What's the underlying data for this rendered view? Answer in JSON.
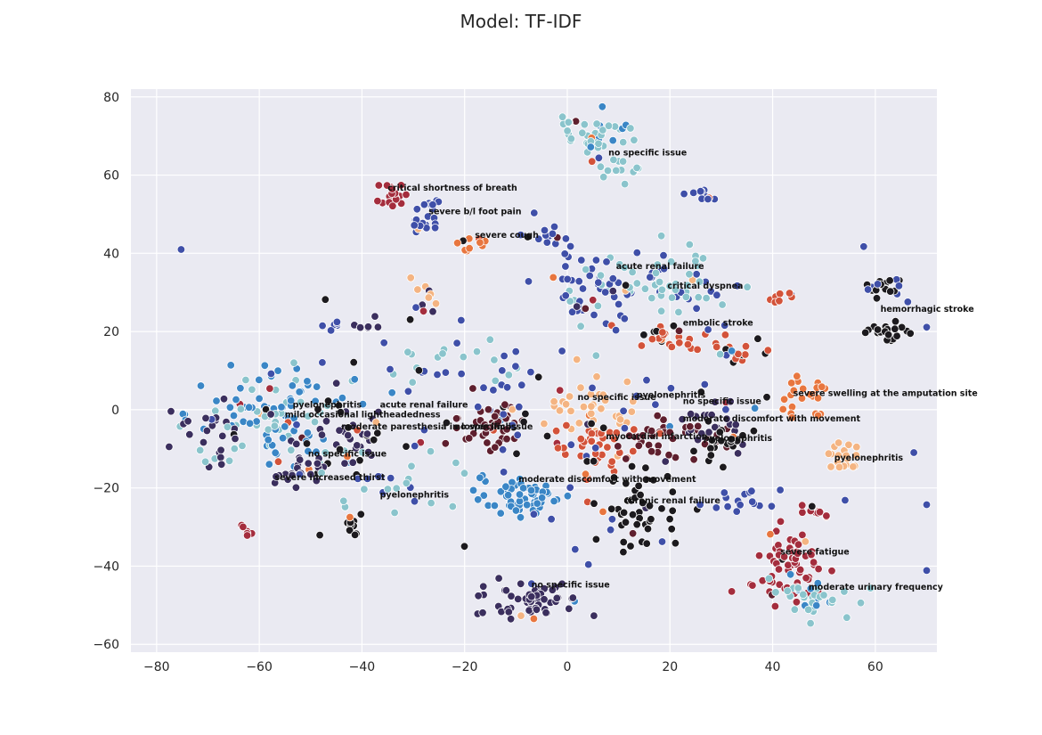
{
  "chart_data": {
    "type": "scatter",
    "title": "Model: TF-IDF",
    "xlabel": "",
    "ylabel": "",
    "xlim": [
      -85,
      72
    ],
    "ylim": [
      -62,
      82
    ],
    "xticks": [
      -80,
      -60,
      -40,
      -20,
      0,
      20,
      40,
      60
    ],
    "yticks": [
      -60,
      -40,
      -20,
      0,
      20,
      40,
      60,
      80
    ],
    "grid": true,
    "background": "#eaeaf2",
    "marker_edge": "#ffffff",
    "palette": [
      "#3b2f5e",
      "#3f4fa8",
      "#3a86c6",
      "#8ac4cc",
      "#1c1a1e",
      "#5e1f2e",
      "#a42d3d",
      "#d3533a",
      "#e8763f",
      "#f4b482"
    ],
    "clusters": [
      {
        "x": 5,
        "y": 70,
        "sx": 4,
        "sy": 3,
        "n": 45,
        "c": 3,
        "mix": 2
      },
      {
        "x": 10,
        "y": 62,
        "sx": 3,
        "sy": 2,
        "n": 12,
        "c": 3
      },
      {
        "x": -34,
        "y": 55,
        "sx": 1.5,
        "sy": 1.5,
        "n": 18,
        "c": 6
      },
      {
        "x": -27,
        "y": 52,
        "sx": 1.5,
        "sy": 1,
        "n": 9,
        "c": 1
      },
      {
        "x": -28,
        "y": 47,
        "sx": 1.5,
        "sy": 1.5,
        "n": 14,
        "c": 1
      },
      {
        "x": -18,
        "y": 42,
        "sx": 1.5,
        "sy": 1,
        "n": 10,
        "c": 8
      },
      {
        "x": -5,
        "y": 44,
        "sx": 2,
        "sy": 1.5,
        "n": 12,
        "c": 1
      },
      {
        "x": 27,
        "y": 55,
        "sx": 1,
        "sy": 1,
        "n": 9,
        "c": 1
      },
      {
        "x": 5,
        "y": 31,
        "sx": 5,
        "sy": 4,
        "n": 60,
        "c": 1,
        "mix": 3
      },
      {
        "x": 22,
        "y": 32,
        "sx": 5,
        "sy": 4,
        "n": 50,
        "c": 3,
        "mix": 1
      },
      {
        "x": 62,
        "y": 31,
        "sx": 2,
        "sy": 1.5,
        "n": 20,
        "c": 4,
        "mix": 1
      },
      {
        "x": 62,
        "y": 20,
        "sx": 2,
        "sy": 1.5,
        "n": 20,
        "c": 4
      },
      {
        "x": 42,
        "y": 29,
        "sx": 1.5,
        "sy": 1.5,
        "n": 9,
        "c": 7
      },
      {
        "x": 20,
        "y": 19,
        "sx": 4,
        "sy": 2,
        "n": 25,
        "c": 7,
        "mix": 4
      },
      {
        "x": 33,
        "y": 15,
        "sx": 3,
        "sy": 2,
        "n": 18,
        "c": 7,
        "mix": 4
      },
      {
        "x": 47,
        "y": 3,
        "sx": 2.5,
        "sy": 2.5,
        "n": 25,
        "c": 8
      },
      {
        "x": 53,
        "y": -11,
        "sx": 2,
        "sy": 2,
        "n": 18,
        "c": 9
      },
      {
        "x": -55,
        "y": -2,
        "sx": 8,
        "sy": 6,
        "n": 110,
        "c": 2,
        "mix": 3
      },
      {
        "x": -42,
        "y": -6,
        "sx": 5,
        "sy": 5,
        "n": 45,
        "c": 0,
        "mix": 4
      },
      {
        "x": -68,
        "y": -6,
        "sx": 4,
        "sy": 5,
        "n": 30,
        "c": 0,
        "mix": 3
      },
      {
        "x": -53,
        "y": -16,
        "sx": 3,
        "sy": 2,
        "n": 20,
        "c": 0
      },
      {
        "x": -15,
        "y": -5,
        "sx": 4,
        "sy": 3,
        "n": 45,
        "c": 5
      },
      {
        "x": 5,
        "y": 0,
        "sx": 7,
        "sy": 4,
        "n": 40,
        "c": 9
      },
      {
        "x": 5,
        "y": -10,
        "sx": 5,
        "sy": 4,
        "n": 40,
        "c": 7
      },
      {
        "x": 18,
        "y": -7,
        "sx": 4,
        "sy": 3,
        "n": 30,
        "c": 5
      },
      {
        "x": 28,
        "y": -4,
        "sx": 4,
        "sy": 4,
        "n": 35,
        "c": 0,
        "mix": 5
      },
      {
        "x": 30,
        "y": -9,
        "sx": 3,
        "sy": 3,
        "n": 20,
        "c": 4
      },
      {
        "x": 15,
        "y": -26,
        "sx": 5,
        "sy": 5,
        "n": 45,
        "c": 4
      },
      {
        "x": -10,
        "y": -23,
        "sx": 4,
        "sy": 3,
        "n": 55,
        "c": 2
      },
      {
        "x": -8,
        "y": -49,
        "sx": 5,
        "sy": 3,
        "n": 60,
        "c": 0
      },
      {
        "x": 43,
        "y": -40,
        "sx": 4,
        "sy": 5,
        "n": 65,
        "c": 6
      },
      {
        "x": 48,
        "y": -48,
        "sx": 4,
        "sy": 2.5,
        "n": 35,
        "c": 3,
        "mix": 2
      },
      {
        "x": 48,
        "y": -26,
        "sx": 1.5,
        "sy": 1,
        "n": 10,
        "c": 6
      },
      {
        "x": 35,
        "y": -23,
        "sx": 3,
        "sy": 2,
        "n": 15,
        "c": 1
      },
      {
        "x": -62,
        "y": -31,
        "sx": 1,
        "sy": 1,
        "n": 6,
        "c": 6
      },
      {
        "x": -42,
        "y": -30,
        "sx": 1.5,
        "sy": 1,
        "n": 9,
        "c": 4
      },
      {
        "x": -46,
        "y": 22,
        "sx": 1,
        "sy": 1,
        "n": 6,
        "c": 1
      },
      {
        "x": -38,
        "y": 22,
        "sx": 1.5,
        "sy": 1,
        "n": 6,
        "c": 0
      },
      {
        "x": -28,
        "y": 30,
        "sx": 1.5,
        "sy": 2,
        "n": 9,
        "c": 9,
        "mix": 0
      },
      {
        "x": -20,
        "y": 13,
        "sx": 10,
        "sy": 3,
        "n": 25,
        "c": 3,
        "mix": 1
      },
      {
        "x": -35,
        "y": -20,
        "sx": 8,
        "sy": 5,
        "n": 25,
        "c": 3,
        "mix": 1
      },
      {
        "x": 0,
        "y": -5,
        "sx": 30,
        "sy": 20,
        "n": 90,
        "c": 1,
        "mix": 4
      }
    ],
    "annotations": [
      {
        "x": 8,
        "y": 65,
        "text": "no specific issue"
      },
      {
        "x": -35,
        "y": 56,
        "text": "critical shortness of breath"
      },
      {
        "x": -27,
        "y": 50,
        "text": "severe b/l foot pain"
      },
      {
        "x": -18,
        "y": 44,
        "text": "severe cough"
      },
      {
        "x": 9.5,
        "y": 36,
        "text": "acute renal failure"
      },
      {
        "x": 19.5,
        "y": 31,
        "text": "critical dyspnea"
      },
      {
        "x": 61,
        "y": 25,
        "text": "hemorrhagic stroke"
      },
      {
        "x": 22.5,
        "y": 21.5,
        "text": "embolic stroke"
      },
      {
        "x": 44,
        "y": 3.5,
        "text": "severe swelling at the amputation site"
      },
      {
        "x": 2,
        "y": 2.5,
        "text": "no specific issue"
      },
      {
        "x": 13.5,
        "y": 3,
        "text": "pyelonephritis"
      },
      {
        "x": 22.5,
        "y": 1.5,
        "text": "no specific issue"
      },
      {
        "x": 22.5,
        "y": -3,
        "text": "moderate discomfort with movement"
      },
      {
        "x": -53.5,
        "y": 0.5,
        "text": "pyelonephritis"
      },
      {
        "x": -36.5,
        "y": 0.5,
        "text": "acute renal failure"
      },
      {
        "x": -55,
        "y": -2,
        "text": "mild occasional lightheadedness"
      },
      {
        "x": -44,
        "y": -5,
        "text": "moderate paresthesia in lower limbs"
      },
      {
        "x": -22,
        "y": -5,
        "text": "no specific issue"
      },
      {
        "x": 7.5,
        "y": -7.5,
        "text": "myocardial infarction"
      },
      {
        "x": 26.5,
        "y": -8,
        "text": "pyelonephritis"
      },
      {
        "x": 52,
        "y": -13,
        "text": "pyelonephritis"
      },
      {
        "x": -50.5,
        "y": -12,
        "text": "no specific issue"
      },
      {
        "x": -57,
        "y": -18,
        "text": "severe increased thirst"
      },
      {
        "x": -9.5,
        "y": -18.5,
        "text": "moderate discomfort with movement"
      },
      {
        "x": -36.5,
        "y": -22.5,
        "text": "pyelonephritis"
      },
      {
        "x": 11,
        "y": -24,
        "text": "chronic renal failure"
      },
      {
        "x": 41.5,
        "y": -37,
        "text": "severe fatigue"
      },
      {
        "x": -7,
        "y": -45.5,
        "text": "no specific issue"
      },
      {
        "x": 47,
        "y": -46,
        "text": "moderate urinary frequency"
      }
    ]
  }
}
